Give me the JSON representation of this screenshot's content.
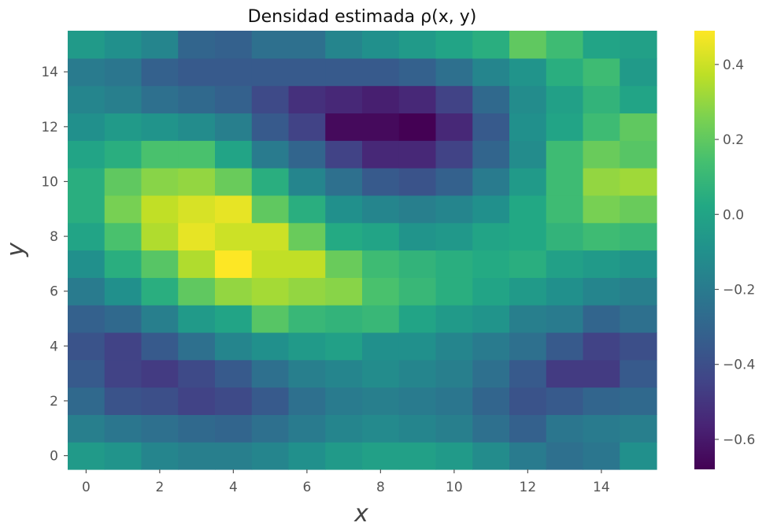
{
  "chart_data": {
    "type": "heatmap",
    "title": "Densidad estimada ρ(x, y)",
    "xlabel": "x",
    "ylabel": "y",
    "colormap": "viridis",
    "color_range": [
      -0.68,
      0.49
    ],
    "x_range": [
      -0.5,
      15.5
    ],
    "y_range": [
      -0.5,
      15.5
    ],
    "x_ticks": [
      0,
      2,
      4,
      6,
      8,
      10,
      12,
      14
    ],
    "y_ticks": [
      0,
      2,
      4,
      6,
      8,
      10,
      12,
      14
    ],
    "colorbar_ticks": [
      -0.6,
      -0.4,
      -0.2,
      0.0,
      0.2,
      0.4
    ],
    "colorbar_tick_labels": [
      "−0.6",
      "−0.4",
      "−0.2",
      "0.0",
      "0.2",
      "0.4"
    ],
    "grid": false,
    "values": [
      [
        -0.05,
        -0.08,
        -0.15,
        -0.18,
        -0.18,
        -0.15,
        -0.1,
        -0.05,
        -0.02,
        -0.02,
        -0.05,
        -0.12,
        -0.2,
        -0.25,
        -0.22,
        -0.1
      ],
      [
        -0.18,
        -0.22,
        -0.25,
        -0.28,
        -0.3,
        -0.25,
        -0.2,
        -0.15,
        -0.13,
        -0.15,
        -0.18,
        -0.25,
        -0.32,
        -0.22,
        -0.2,
        -0.18
      ],
      [
        -0.28,
        -0.38,
        -0.4,
        -0.45,
        -0.42,
        -0.35,
        -0.25,
        -0.2,
        -0.18,
        -0.2,
        -0.22,
        -0.3,
        -0.38,
        -0.35,
        -0.3,
        -0.28
      ],
      [
        -0.35,
        -0.45,
        -0.48,
        -0.42,
        -0.35,
        -0.25,
        -0.18,
        -0.15,
        -0.12,
        -0.15,
        -0.18,
        -0.25,
        -0.35,
        -0.48,
        -0.48,
        -0.35
      ],
      [
        -0.38,
        -0.45,
        -0.35,
        -0.25,
        -0.15,
        -0.1,
        -0.05,
        -0.02,
        -0.1,
        -0.1,
        -0.15,
        -0.2,
        -0.25,
        -0.35,
        -0.45,
        -0.4
      ],
      [
        -0.32,
        -0.28,
        -0.18,
        -0.05,
        0.0,
        0.18,
        0.1,
        0.08,
        0.1,
        0.0,
        -0.05,
        -0.08,
        -0.18,
        -0.2,
        -0.3,
        -0.25
      ],
      [
        -0.2,
        -0.1,
        0.05,
        0.2,
        0.3,
        0.33,
        0.3,
        0.28,
        0.15,
        0.1,
        0.05,
        0.0,
        -0.05,
        -0.1,
        -0.15,
        -0.18
      ],
      [
        -0.1,
        0.05,
        0.18,
        0.35,
        0.49,
        0.38,
        0.38,
        0.22,
        0.12,
        0.08,
        0.05,
        0.03,
        0.05,
        -0.02,
        -0.05,
        -0.08
      ],
      [
        0.0,
        0.15,
        0.35,
        0.45,
        0.4,
        0.4,
        0.22,
        0.03,
        0.0,
        -0.08,
        -0.06,
        0.0,
        0.02,
        0.08,
        0.12,
        0.1
      ],
      [
        0.05,
        0.25,
        0.38,
        0.42,
        0.45,
        0.2,
        0.05,
        -0.1,
        -0.15,
        -0.18,
        -0.15,
        -0.1,
        0.02,
        0.12,
        0.25,
        0.22
      ],
      [
        0.05,
        0.2,
        0.28,
        0.3,
        0.22,
        0.05,
        -0.15,
        -0.25,
        -0.35,
        -0.38,
        -0.32,
        -0.2,
        -0.05,
        0.12,
        0.3,
        0.32
      ],
      [
        0.0,
        0.05,
        0.15,
        0.15,
        0.0,
        -0.2,
        -0.3,
        -0.45,
        -0.55,
        -0.55,
        -0.45,
        -0.3,
        -0.12,
        0.12,
        0.22,
        0.18
      ],
      [
        -0.1,
        -0.05,
        -0.08,
        -0.12,
        -0.18,
        -0.35,
        -0.45,
        -0.65,
        -0.65,
        -0.68,
        -0.55,
        -0.35,
        -0.1,
        0.0,
        0.12,
        0.2
      ],
      [
        -0.15,
        -0.18,
        -0.25,
        -0.28,
        -0.32,
        -0.42,
        -0.52,
        -0.55,
        -0.58,
        -0.55,
        -0.45,
        -0.28,
        -0.12,
        -0.02,
        0.08,
        0.0
      ],
      [
        -0.2,
        -0.22,
        -0.32,
        -0.35,
        -0.35,
        -0.35,
        -0.35,
        -0.35,
        -0.35,
        -0.32,
        -0.25,
        -0.15,
        -0.08,
        0.05,
        0.12,
        -0.05
      ],
      [
        -0.05,
        -0.1,
        -0.15,
        -0.3,
        -0.32,
        -0.25,
        -0.25,
        -0.15,
        -0.1,
        -0.05,
        0.0,
        0.05,
        0.2,
        0.12,
        0.0,
        -0.02
      ]
    ]
  }
}
